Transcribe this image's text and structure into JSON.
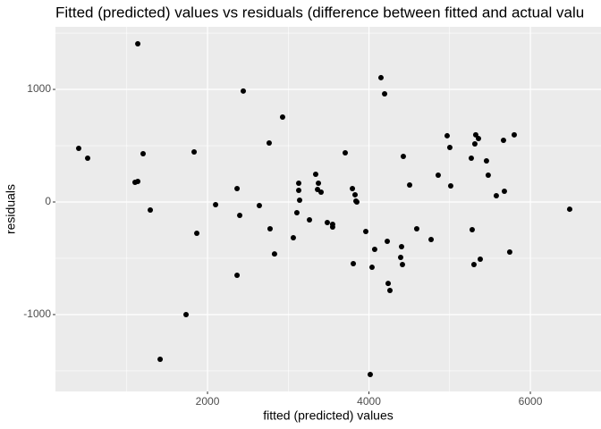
{
  "chart_data": {
    "type": "scatter",
    "title": "Fitted (predicted) values vs residuals (difference between fitted and actual valu",
    "x_label": "fitted (predicted) values",
    "y_label": "residuals",
    "color": "#000000",
    "grid": true,
    "xlim": [
      116,
      6875
    ],
    "xticks": [
      2000,
      4000,
      6000
    ],
    "ylim": [
      -1683,
      1556
    ],
    "yticks": [
      -1000,
      0,
      1000
    ],
    "x": [
      404,
      515,
      1136,
      1102,
      1136,
      1202,
      1291,
      1413,
      1734,
      1834,
      1867,
      2100,
      2366,
      2366,
      2399,
      2443,
      2642,
      2764,
      2775,
      2830,
      2930,
      3063,
      3107,
      3130,
      3130,
      3141,
      3263,
      3340,
      3363,
      3374,
      3407,
      3484,
      3550,
      3550,
      3706,
      3795,
      3806,
      3828,
      3839,
      3850,
      3961,
      4016,
      4038,
      4071,
      4149,
      4194,
      4227,
      4238,
      4260,
      4393,
      4404,
      4415,
      4426,
      4504,
      4592,
      4770,
      4858,
      4969,
      5002,
      5013,
      5268,
      5279,
      5301,
      5312,
      5323,
      5357,
      5379,
      5456,
      5478,
      5578,
      5667,
      5678,
      5744,
      5800,
      6487
    ],
    "values": [
      476,
      389,
      1405,
      175,
      183,
      429,
      -71,
      -1397,
      -1000,
      445,
      -278,
      -24,
      -651,
      119,
      -119,
      985,
      -32,
      524,
      -238,
      -461,
      754,
      -318,
      -95,
      167,
      103,
      16,
      -159,
      246,
      111,
      167,
      87,
      -183,
      -198,
      -222,
      437,
      119,
      -548,
      64,
      8,
      0,
      -262,
      -1532,
      -580,
      -421,
      1104,
      961,
      -349,
      -723,
      -786,
      -492,
      -397,
      -556,
      405,
      151,
      -238,
      -333,
      238,
      588,
      484,
      143,
      389,
      -246,
      -556,
      516,
      596,
      564,
      -508,
      365,
      238,
      56,
      548,
      95,
      -445,
      596,
      -64
    ]
  }
}
